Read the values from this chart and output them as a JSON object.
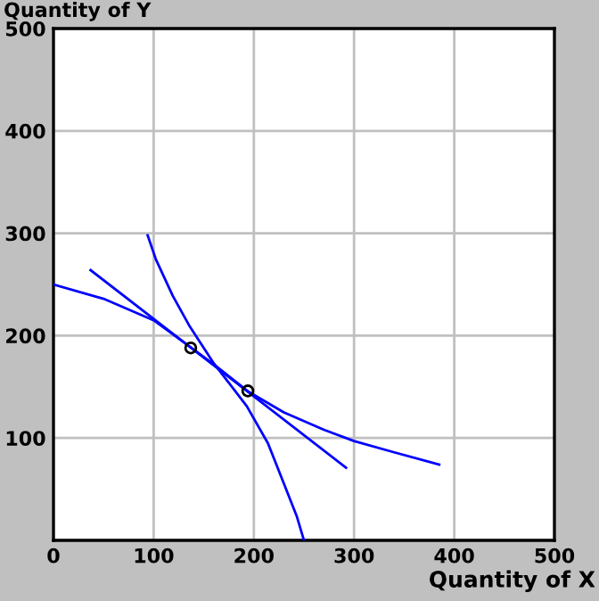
{
  "chart_data": {
    "type": "line",
    "xlabel": "Quantity of X",
    "ylabel": "Quantity of Y",
    "xlim": [
      0,
      500
    ],
    "ylim": [
      0,
      500
    ],
    "xticks": [
      0,
      100,
      200,
      300,
      400,
      500
    ],
    "yticks": [
      {
        "value": 0,
        "label": null
      },
      100,
      200,
      300,
      400,
      500
    ],
    "grid": true,
    "marker": "none",
    "line_style": "solid",
    "series": [
      {
        "color": "#0000ff",
        "x": [
          0,
          50,
          100,
          135,
          160,
          195,
          230,
          270,
          300,
          340,
          385
        ],
        "values": [
          250,
          236,
          215,
          190,
          172,
          145,
          125,
          108,
          97,
          86,
          74
        ]
      },
      {
        "color": "#0000ff",
        "x": [
          37,
          292
        ],
        "values": [
          264,
          71
        ]
      },
      {
        "color": "#0000ff",
        "x": [
          94,
          102,
          119,
          136,
          160,
          193,
          214,
          231,
          243,
          250
        ],
        "values": [
          298,
          275,
          239,
          209,
          173,
          131,
          95,
          53,
          23,
          0
        ]
      },
      {
        "type": "scatter",
        "color": "#000000",
        "marker": "circle",
        "x": [
          137,
          194
        ],
        "values": [
          188,
          146
        ]
      }
    ]
  }
}
